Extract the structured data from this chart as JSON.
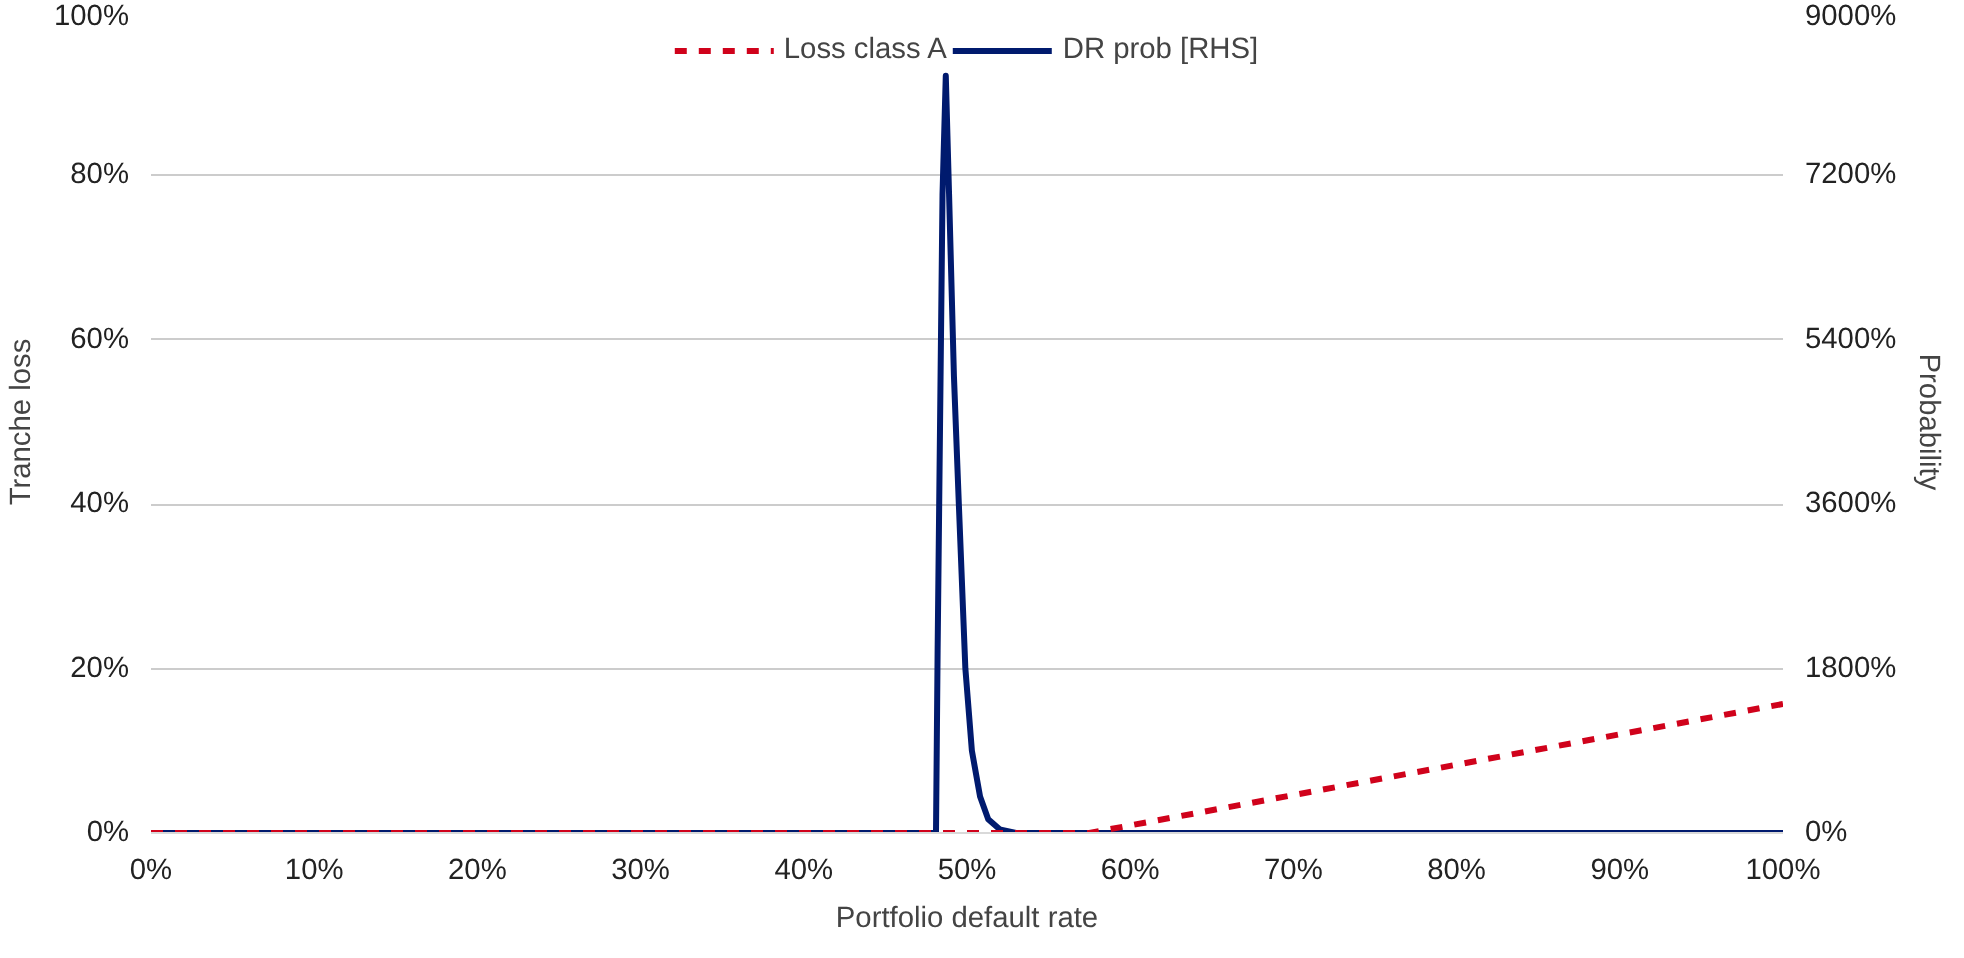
{
  "chart_data": {
    "type": "line",
    "xlabel": "Portfolio default rate",
    "ylabel": "Tranche loss",
    "y2label": "Probability",
    "xlim": [
      0,
      100
    ],
    "xticks": [
      {
        "value": 0,
        "label": "0%"
      },
      {
        "value": 10,
        "label": "10%"
      },
      {
        "value": 20,
        "label": "20%"
      },
      {
        "value": 30,
        "label": "30%"
      },
      {
        "value": 40,
        "label": "40%"
      },
      {
        "value": 50,
        "label": "50%"
      },
      {
        "value": 60,
        "label": "60%"
      },
      {
        "value": 70,
        "label": "70%"
      },
      {
        "value": 80,
        "label": "80%"
      },
      {
        "value": 90,
        "label": "90%"
      },
      {
        "value": 100,
        "label": "100%"
      }
    ],
    "ylim": [
      0,
      100
    ],
    "yticks": [
      {
        "value": 0,
        "label": "0%"
      },
      {
        "value": 20,
        "label": "20%"
      },
      {
        "value": 40,
        "label": "40%"
      },
      {
        "value": 60,
        "label": "60%"
      },
      {
        "value": 80,
        "label": "80%"
      },
      {
        "value": 100,
        "label": "100%"
      }
    ],
    "y2lim": [
      0,
      9000
    ],
    "y2ticks": [
      {
        "value": 0,
        "label": "0%"
      },
      {
        "value": 1800,
        "label": "1800%"
      },
      {
        "value": 3600,
        "label": "3600%"
      },
      {
        "value": 5400,
        "label": "5400%"
      },
      {
        "value": 7200,
        "label": "7200%"
      },
      {
        "value": 9000,
        "label": "9000%"
      }
    ],
    "grid": "y",
    "legend": "top",
    "series": [
      {
        "name": "Loss class A",
        "color": "#d0021b",
        "line_style": "dashed",
        "x": [
          0,
          57.5,
          100
        ],
        "values": [
          0,
          0,
          15.7
        ]
      },
      {
        "name": "DR prob [RHS]",
        "color": "#001a6e",
        "line_style": "solid",
        "axis": "y2",
        "x": [
          0,
          48.1,
          48.2,
          48.5,
          48.7,
          48.9,
          49.2,
          49.5,
          49.9,
          50.3,
          50.8,
          51.3,
          52,
          53,
          100
        ],
        "values": [
          0,
          0,
          2000,
          7000,
          8290,
          7000,
          5000,
          3600,
          1800,
          900,
          400,
          150,
          40,
          0,
          0
        ]
      }
    ]
  }
}
